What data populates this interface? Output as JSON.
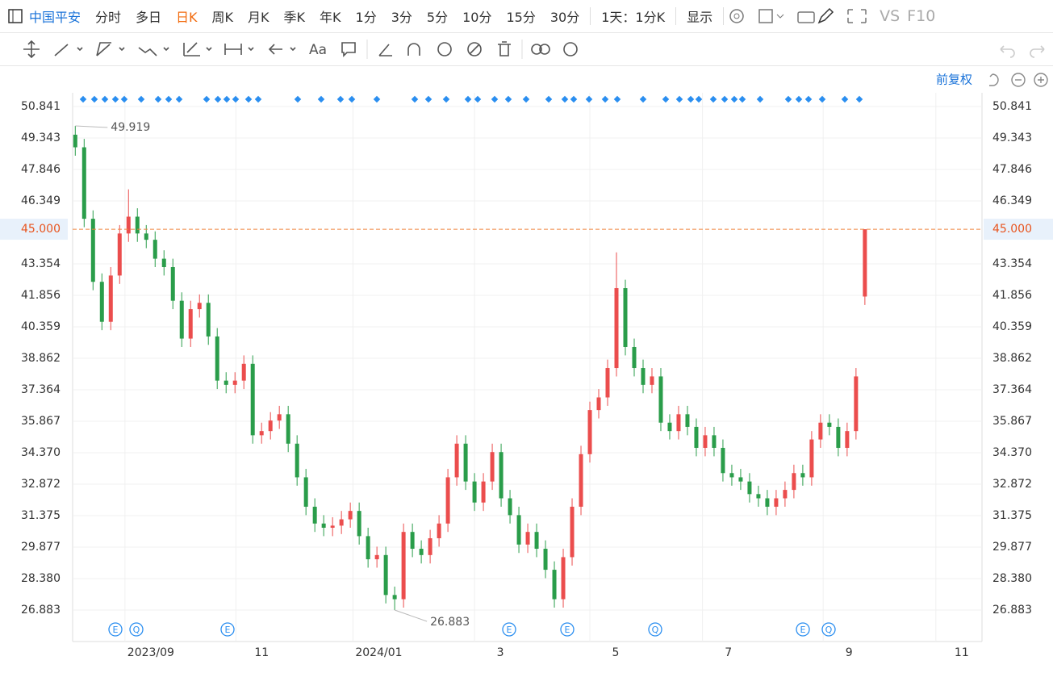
{
  "toolbar": {
    "stock": "中国平安",
    "periods": [
      "分时",
      "多日",
      "日K",
      "周K",
      "月K",
      "季K",
      "年K",
      "1分",
      "3分",
      "5分",
      "10分",
      "15分",
      "30分"
    ],
    "minute_select": "1天：1分K",
    "display": "显示",
    "vs": "VS",
    "f10": "F10",
    "text_tool": "Aa",
    "adjust": "前复权"
  },
  "chart_data": {
    "type": "candlestick",
    "open": [
      49.5,
      48.9,
      45.5,
      42.5,
      40.6,
      42.8,
      44.8,
      45.6,
      44.8,
      44.5,
      43.6,
      43.2,
      41.6,
      39.8,
      41.2,
      41.5,
      39.9,
      37.8,
      37.6,
      37.8,
      38.6,
      35.2,
      35.4,
      35.9,
      36.2,
      34.8,
      33.2,
      31.8,
      31.0,
      30.8,
      30.9,
      31.2,
      31.6,
      30.4,
      29.3,
      29.5,
      27.6,
      27.4,
      30.6,
      29.8,
      29.5,
      30.3,
      31.0,
      33.2,
      34.8,
      33.0,
      32.0,
      33.0,
      34.4,
      32.2,
      31.4,
      30.0,
      30.6,
      29.8,
      28.8,
      27.4,
      29.4,
      31.8,
      34.3,
      36.4,
      37.0,
      38.4,
      42.2,
      39.4,
      38.4,
      37.6,
      38.0,
      35.8,
      35.4,
      36.2,
      35.6,
      34.6,
      35.2,
      34.6,
      33.4,
      33.2,
      33.0,
      32.4,
      32.2,
      31.8,
      32.2,
      32.6,
      33.4,
      33.2,
      35.0,
      35.8,
      35.6,
      34.6,
      35.4,
      41.8
    ],
    "high": [
      49.919,
      49.3,
      45.9,
      42.9,
      43.2,
      45.2,
      46.9,
      46.0,
      45.2,
      44.9,
      44.0,
      43.6,
      42.0,
      41.6,
      41.9,
      41.9,
      40.3,
      38.2,
      38.2,
      39.0,
      39.0,
      35.8,
      36.3,
      36.6,
      36.6,
      35.2,
      33.6,
      32.2,
      31.4,
      31.3,
      31.6,
      32.0,
      32.0,
      30.8,
      29.9,
      29.9,
      28.0,
      31.0,
      31.0,
      30.2,
      30.7,
      31.4,
      33.6,
      35.2,
      35.2,
      33.4,
      33.4,
      34.8,
      34.8,
      32.6,
      31.8,
      31.0,
      31.0,
      30.2,
      29.2,
      29.8,
      32.2,
      34.7,
      36.8,
      37.4,
      38.8,
      43.9,
      42.6,
      39.8,
      38.8,
      38.4,
      38.4,
      36.2,
      36.6,
      36.6,
      36.0,
      35.6,
      35.6,
      35.0,
      33.8,
      33.6,
      33.4,
      32.8,
      32.6,
      32.6,
      33.0,
      33.8,
      33.8,
      35.4,
      36.2,
      36.2,
      36.0,
      35.8,
      38.4,
      45.0
    ],
    "low": [
      48.5,
      45.1,
      42.1,
      40.2,
      40.2,
      42.4,
      44.4,
      44.4,
      44.1,
      43.2,
      42.8,
      41.2,
      39.4,
      39.4,
      40.8,
      39.5,
      37.4,
      37.2,
      37.2,
      37.4,
      34.8,
      34.8,
      35.0,
      35.5,
      34.4,
      32.8,
      31.4,
      30.6,
      30.4,
      30.4,
      30.5,
      30.8,
      30.0,
      28.9,
      28.9,
      27.2,
      26.883,
      27.0,
      29.4,
      29.1,
      29.1,
      29.9,
      30.6,
      32.8,
      32.6,
      31.6,
      31.6,
      32.6,
      31.8,
      31.0,
      29.6,
      29.6,
      29.4,
      28.4,
      27.0,
      27.0,
      29.0,
      31.4,
      33.9,
      36.0,
      36.6,
      38.0,
      39.0,
      38.0,
      37.2,
      37.2,
      35.4,
      35.0,
      35.0,
      35.2,
      34.2,
      34.2,
      34.2,
      33.0,
      32.8,
      32.6,
      32.0,
      31.8,
      31.4,
      31.4,
      31.8,
      32.2,
      32.8,
      32.8,
      34.6,
      35.2,
      34.2,
      34.2,
      35.0,
      41.4
    ],
    "close": [
      48.9,
      45.5,
      42.5,
      40.6,
      42.8,
      44.8,
      45.6,
      44.8,
      44.5,
      43.6,
      43.2,
      41.6,
      39.8,
      41.2,
      41.5,
      39.9,
      37.8,
      37.6,
      37.8,
      38.6,
      35.2,
      35.4,
      35.9,
      36.2,
      34.8,
      33.2,
      31.8,
      31.0,
      30.8,
      30.9,
      31.2,
      31.6,
      30.4,
      29.3,
      29.5,
      27.6,
      27.4,
      30.6,
      29.8,
      29.5,
      30.3,
      31.0,
      33.2,
      34.8,
      33.0,
      32.0,
      33.0,
      34.4,
      32.2,
      31.4,
      30.0,
      30.6,
      29.8,
      28.8,
      27.4,
      29.4,
      31.8,
      34.3,
      36.4,
      37.0,
      38.4,
      42.2,
      39.4,
      38.4,
      37.6,
      38.0,
      35.8,
      35.4,
      36.2,
      35.6,
      34.6,
      35.2,
      34.6,
      33.4,
      33.2,
      33.0,
      32.4,
      32.2,
      31.8,
      32.2,
      32.6,
      33.4,
      33.2,
      35.0,
      35.8,
      35.6,
      34.6,
      35.4,
      38.0,
      45.0
    ],
    "up_color": "#eb4d4d",
    "down_color": "#2a9d4a",
    "xlim": [
      -0.3,
      102.2
    ],
    "xticks": [
      {
        "value": 5.6,
        "label": "2023/09"
      },
      {
        "value": 18.1,
        "label": "11"
      },
      {
        "value": 31.3,
        "label": "2024/01"
      },
      {
        "value": 45,
        "label": "3"
      },
      {
        "value": 58,
        "label": "5"
      },
      {
        "value": 70.7,
        "label": "7"
      },
      {
        "value": 84.3,
        "label": "9"
      },
      {
        "value": 97,
        "label": "11"
      }
    ],
    "ylim": [
      25.386,
      52.069
    ],
    "yticks": [
      50.841,
      49.343,
      47.846,
      46.349,
      43.354,
      41.856,
      40.359,
      38.862,
      37.364,
      35.867,
      {
        "value": 34.37,
        "label": "34.370"
      },
      32.872,
      31.375,
      29.877,
      {
        "value": 28.38,
        "label": "28.380"
      },
      26.883
    ],
    "grid": true,
    "last_price": {
      "value": 45,
      "label": "45.000"
    },
    "high_marker": 49.919,
    "low_marker": 26.883,
    "events": [
      "E",
      "Q",
      "E",
      "E",
      "E",
      "Q",
      "E",
      "Q"
    ]
  }
}
